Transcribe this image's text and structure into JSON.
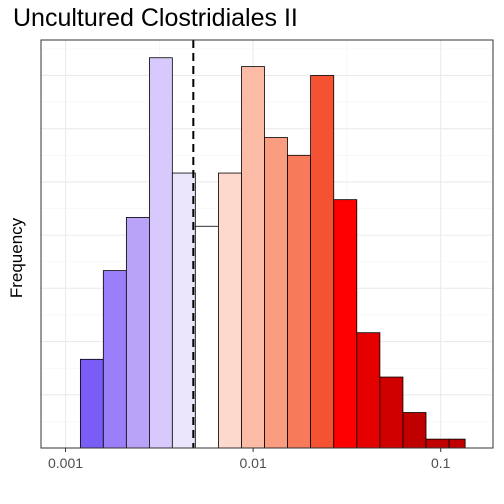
{
  "chart_data": {
    "type": "histogram",
    "title": "Uncultured Clostridiales II",
    "xlabel": "",
    "ylabel": "Frequency",
    "x_scale": "log10",
    "xlim": [
      0.00074,
      0.19
    ],
    "ylim": [
      0,
      23
    ],
    "x_ticks": [
      {
        "value": 0.001,
        "label": "0.001"
      },
      {
        "value": 0.01,
        "label": "0.01"
      },
      {
        "value": 0.1,
        "label": "0.1"
      }
    ],
    "grid": true,
    "bins": [
      {
        "x0": 0.0012,
        "x1": 0.00159,
        "count": 5,
        "color": "#7a5cf6"
      },
      {
        "x0": 0.00159,
        "x1": 0.00211,
        "count": 10,
        "color": "#9b7ef9"
      },
      {
        "x0": 0.00211,
        "x1": 0.0028,
        "count": 13,
        "color": "#b9a3f9"
      },
      {
        "x0": 0.0028,
        "x1": 0.00371,
        "count": 22,
        "color": "#d8c9fc"
      },
      {
        "x0": 0.00371,
        "x1": 0.00492,
        "count": 15.5,
        "color": "#ece6fd"
      },
      {
        "x0": 0.00492,
        "x1": 0.00653,
        "count": 12.5,
        "color": "#ffffff"
      },
      {
        "x0": 0.00653,
        "x1": 0.00867,
        "count": 15.5,
        "color": "#fdd8cd"
      },
      {
        "x0": 0.00867,
        "x1": 0.0115,
        "count": 21.5,
        "color": "#fbbba7"
      },
      {
        "x0": 0.0115,
        "x1": 0.01525,
        "count": 17.5,
        "color": "#f99c80"
      },
      {
        "x0": 0.01525,
        "x1": 0.02025,
        "count": 16.5,
        "color": "#f77b5a"
      },
      {
        "x0": 0.02025,
        "x1": 0.0269,
        "count": 21,
        "color": "#f45232"
      },
      {
        "x0": 0.0269,
        "x1": 0.0357,
        "count": 14,
        "color": "#ff0000"
      },
      {
        "x0": 0.0357,
        "x1": 0.0474,
        "count": 6.5,
        "color": "#e50000"
      },
      {
        "x0": 0.0474,
        "x1": 0.0629,
        "count": 4,
        "color": "#d10000"
      },
      {
        "x0": 0.0629,
        "x1": 0.0835,
        "count": 2,
        "color": "#c00000"
      },
      {
        "x0": 0.0835,
        "x1": 0.1108,
        "count": 0.5,
        "color": "#c00000"
      },
      {
        "x0": 0.1108,
        "x1": 0.135,
        "count": 0.5,
        "color": "#c00000"
      }
    ],
    "reference_line": {
      "x": 0.0048,
      "style": "dashed",
      "color": "#000000"
    },
    "colors": {
      "panel_border": "#333333",
      "grid_major": "#ebebeb",
      "grid_minor": "#f4f4f4",
      "bar_stroke": "#000000"
    }
  }
}
